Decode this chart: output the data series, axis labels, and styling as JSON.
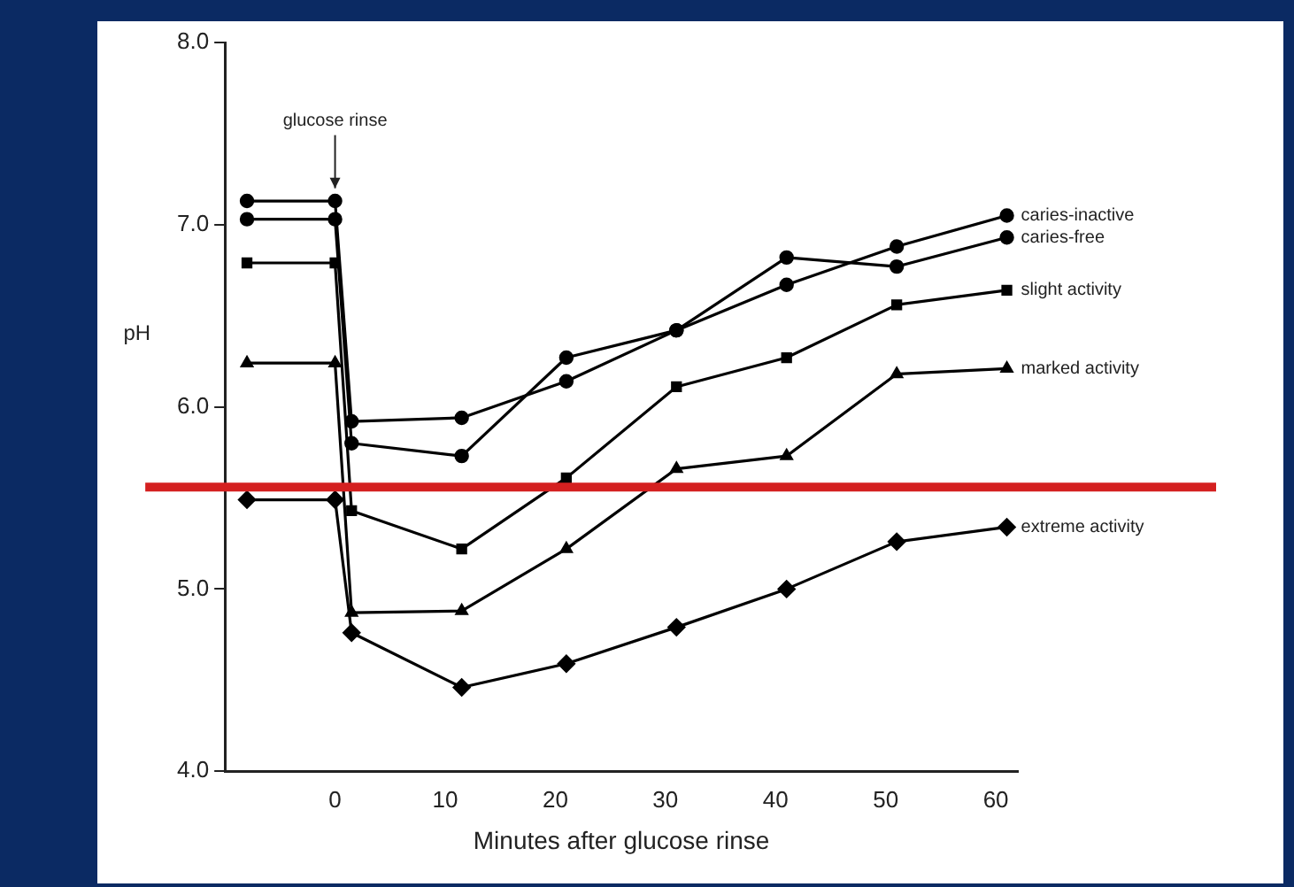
{
  "chart_data": {
    "type": "line",
    "xlabel": "Minutes after glucose rinse",
    "ylabel": "pH",
    "x": [
      -8,
      0,
      1.5,
      11.5,
      21,
      31,
      41,
      51,
      61
    ],
    "series": [
      {
        "name": "caries-inactive",
        "color": "#000000",
        "marker": "circle",
        "values": [
          7.03,
          7.03,
          5.8,
          5.73,
          6.27,
          6.42,
          6.67,
          6.88,
          7.05
        ]
      },
      {
        "name": "caries-free",
        "color": "#000000",
        "marker": "circle",
        "values": [
          7.13,
          7.13,
          5.92,
          5.94,
          6.14,
          6.42,
          6.82,
          6.77,
          6.93
        ]
      },
      {
        "name": "slight activity",
        "color": "#000000",
        "marker": "square",
        "values": [
          6.79,
          6.79,
          5.43,
          5.22,
          5.61,
          6.11,
          6.27,
          6.56,
          6.64
        ]
      },
      {
        "name": "marked activity",
        "color": "#000000",
        "marker": "triangle",
        "values": [
          6.24,
          6.24,
          4.87,
          4.88,
          5.22,
          5.66,
          5.73,
          6.18,
          6.21
        ]
      },
      {
        "name": "extreme activity",
        "color": "#000000",
        "marker": "diamond",
        "values": [
          5.49,
          5.49,
          4.76,
          4.46,
          4.59,
          4.79,
          5.0,
          5.26,
          5.34
        ]
      }
    ],
    "xlim": [
      -10,
      62
    ],
    "xticks": [
      0,
      10,
      20,
      30,
      40,
      50,
      60
    ],
    "ylim": [
      4,
      8
    ],
    "yticks": [
      {
        "value": 4,
        "label": "4.0"
      },
      {
        "value": 5,
        "label": "5.0"
      },
      {
        "value": 6,
        "label": "6.0"
      },
      {
        "value": 7,
        "label": "7.0"
      },
      {
        "value": 8,
        "label": "8.0"
      }
    ],
    "ref_lines": [
      {
        "axis": "y",
        "value": 5.56,
        "color": "#d42020"
      }
    ],
    "annotations": [
      {
        "text": "glucose rinse",
        "x": 0,
        "y": 7.2
      }
    ],
    "grid": false,
    "legend": false,
    "line_style": "solid"
  }
}
